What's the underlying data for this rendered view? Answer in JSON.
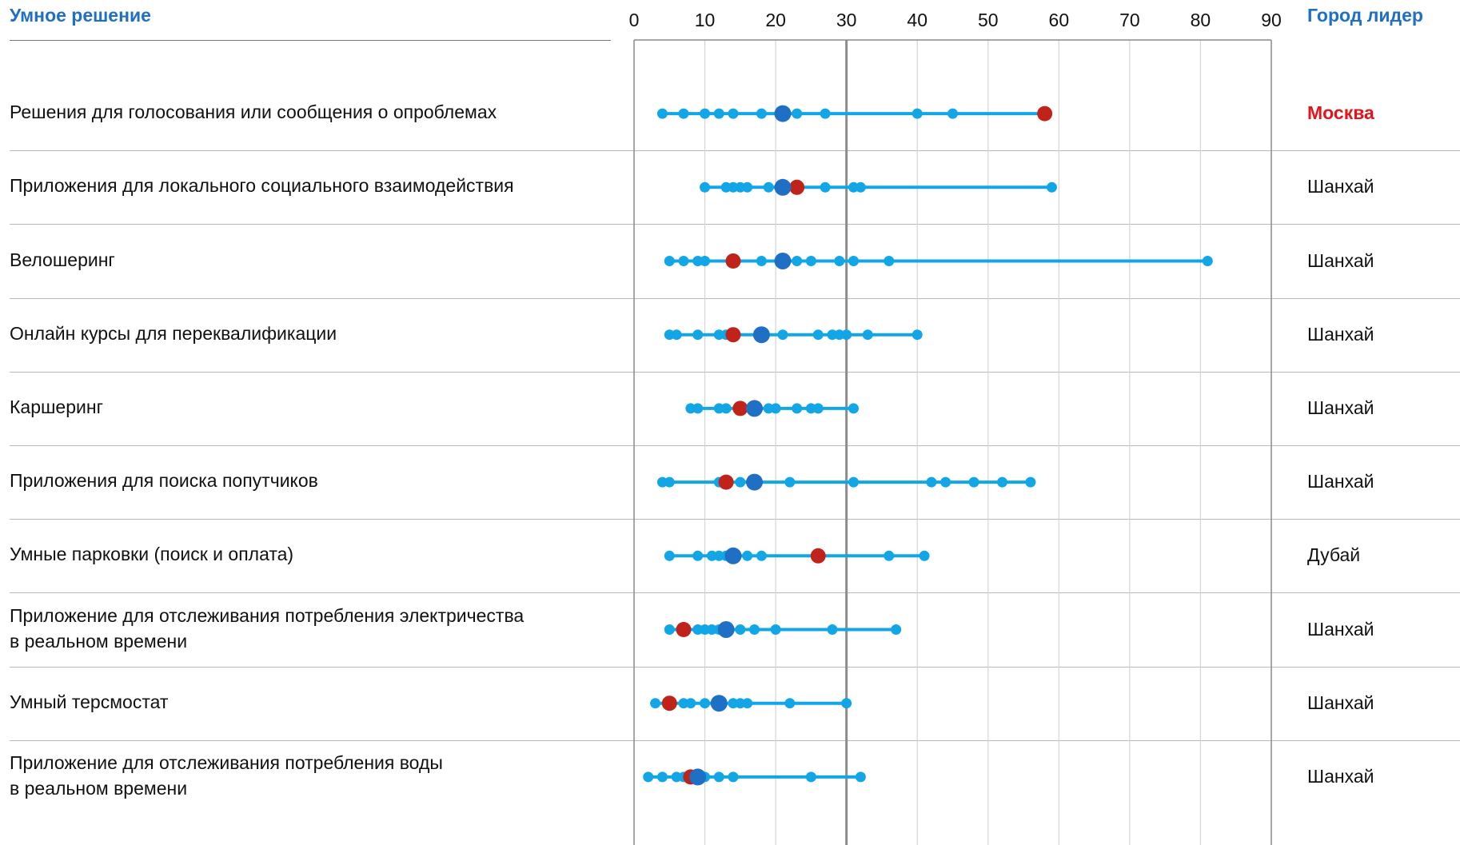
{
  "header": {
    "left_title": "Умное решение",
    "right_title": "Город лидер"
  },
  "colors": {
    "header_blue": "#1f6fc5",
    "dot_light": "#13a6e6",
    "dot_dark": "#1f6fc5",
    "dot_red": "#c0231a",
    "leader_red": "#e3141c"
  },
  "chart_data": {
    "type": "scatter",
    "xlim": [
      0,
      90
    ],
    "x_ticks": [
      "0",
      "10",
      "20",
      "30",
      "40",
      "50",
      "60",
      "70",
      "80",
      "90"
    ],
    "reference_line": 30,
    "rows": [
      {
        "label_lines": [
          "Решения для голосования или сообщения о опроблемах"
        ],
        "leader": "Москва",
        "leader_highlight": true,
        "values": [
          4,
          7,
          10,
          12,
          14,
          18,
          23,
          27,
          40,
          45
        ],
        "dark": 21,
        "red": 58
      },
      {
        "label_lines": [
          "Приложения для локального социального взаимодействия"
        ],
        "leader": "Шанхай",
        "leader_highlight": false,
        "values": [
          10,
          13,
          14,
          15,
          16,
          19,
          27,
          31,
          32,
          59
        ],
        "dark": 21,
        "red": 23
      },
      {
        "label_lines": [
          "Велошеринг"
        ],
        "leader": "Шанхай",
        "leader_highlight": false,
        "values": [
          5,
          7,
          9,
          10,
          18,
          23,
          25,
          29,
          31,
          36,
          81
        ],
        "dark": 21,
        "red": 14
      },
      {
        "label_lines": [
          "Онлайн курсы для переквалификации"
        ],
        "leader": "Шанхай",
        "leader_highlight": false,
        "values": [
          5,
          6,
          9,
          12,
          13,
          21,
          26,
          28,
          29,
          30,
          33,
          40
        ],
        "dark": 18,
        "red": 14
      },
      {
        "label_lines": [
          "Каршеринг"
        ],
        "leader": "Шанхай",
        "leader_highlight": false,
        "values": [
          8,
          9,
          12,
          13,
          19,
          20,
          23,
          25,
          26,
          31
        ],
        "dark": 17,
        "red": 15
      },
      {
        "label_lines": [
          "Приложения для поиска попутчиков"
        ],
        "leader": "Шанхай",
        "leader_highlight": false,
        "values": [
          4,
          5,
          12,
          15,
          22,
          31,
          42,
          44,
          48,
          52,
          56
        ],
        "dark": 17,
        "red": 13
      },
      {
        "label_lines": [
          "Умные парковки (поиск и оплата)"
        ],
        "leader": "Дубай",
        "leader_highlight": false,
        "values": [
          5,
          9,
          11,
          12,
          13,
          16,
          18,
          36,
          41
        ],
        "dark": 14,
        "red": 26
      },
      {
        "label_lines": [
          "Приложение для отслеживания потребления электричества",
          "в реальном времени"
        ],
        "leader": "Шанхай",
        "leader_highlight": false,
        "values": [
          5,
          9,
          10,
          11,
          12,
          15,
          17,
          20,
          28,
          37
        ],
        "dark": 13,
        "red": 7
      },
      {
        "label_lines": [
          "Умный терсмостат"
        ],
        "leader": "Шанхай",
        "leader_highlight": false,
        "values": [
          3,
          7,
          8,
          10,
          12,
          14,
          15,
          16,
          22,
          30
        ],
        "dark": 12,
        "red": 5
      },
      {
        "label_lines": [
          "Приложение для отслеживания потребления воды",
          "в реальном времени"
        ],
        "leader": "Шанхай",
        "leader_highlight": false,
        "values": [
          2,
          4,
          6,
          7,
          10,
          12,
          14,
          25,
          32
        ],
        "dark": 9,
        "red": 8
      }
    ]
  }
}
